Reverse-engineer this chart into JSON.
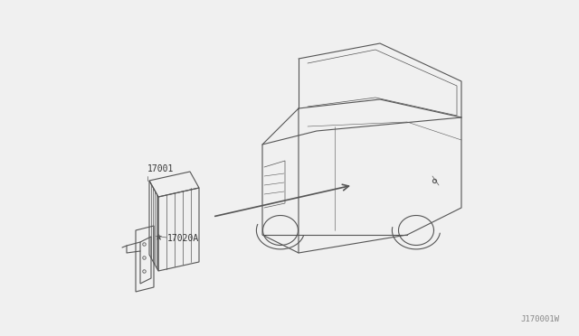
{
  "bg_color": "#f0f0f0",
  "line_color": "#555555",
  "text_color": "#333333",
  "watermark": "J170001W",
  "label_17001": "17001",
  "label_17020A": "17020A",
  "fig_width": 6.4,
  "fig_height": 3.72,
  "dpi": 100
}
